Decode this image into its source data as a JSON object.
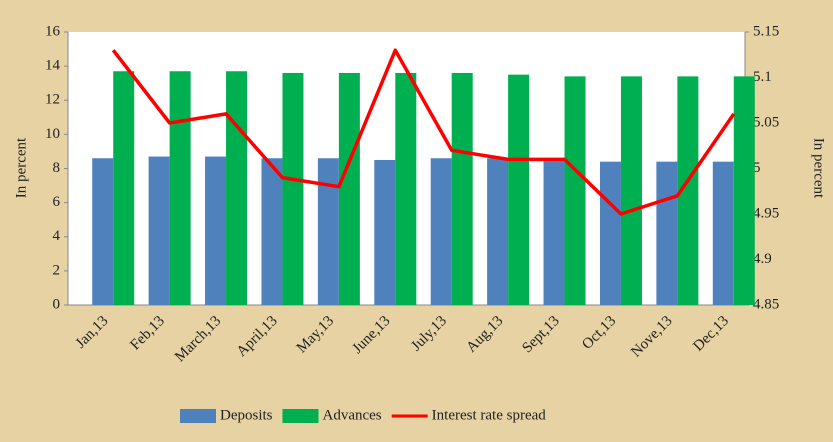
{
  "chart_data": {
    "type": "bar_line",
    "y_label": "In percent",
    "y2_label": "In percent",
    "categories": [
      "Jan,13",
      "Feb,13",
      "March,13",
      "April,13",
      "May,13",
      "June,13",
      "July,13",
      "Aug,13",
      "Sept,13",
      "Oct,13",
      "Nove,13",
      "Dec,13"
    ],
    "series": [
      {
        "name": "Deposits",
        "type": "bar",
        "color": "#4f81bd",
        "values": [
          8.6,
          8.7,
          8.7,
          8.6,
          8.6,
          8.5,
          8.6,
          8.6,
          8.5,
          8.4,
          8.4,
          8.4
        ]
      },
      {
        "name": "Advances",
        "type": "bar",
        "color": "#00b050",
        "values": [
          13.7,
          13.7,
          13.7,
          13.6,
          13.6,
          13.6,
          13.6,
          13.5,
          13.4,
          13.4,
          13.4,
          13.4
        ]
      },
      {
        "name": "Interest rate spread",
        "type": "line",
        "axis": "y2",
        "color": "#ff0000",
        "values": [
          5.13,
          5.05,
          5.06,
          4.99,
          4.98,
          5.13,
          5.02,
          5.01,
          5.01,
          4.95,
          4.97,
          5.06
        ]
      }
    ],
    "ylim": [
      0,
      16
    ],
    "yticks": [
      0,
      2,
      4,
      6,
      8,
      10,
      12,
      14,
      16
    ],
    "y2lim": [
      4.85,
      5.15
    ],
    "y2ticks": [
      4.85,
      4.9,
      4.95,
      5,
      5.05,
      5.1,
      5.15
    ],
    "legend": "bottom"
  }
}
